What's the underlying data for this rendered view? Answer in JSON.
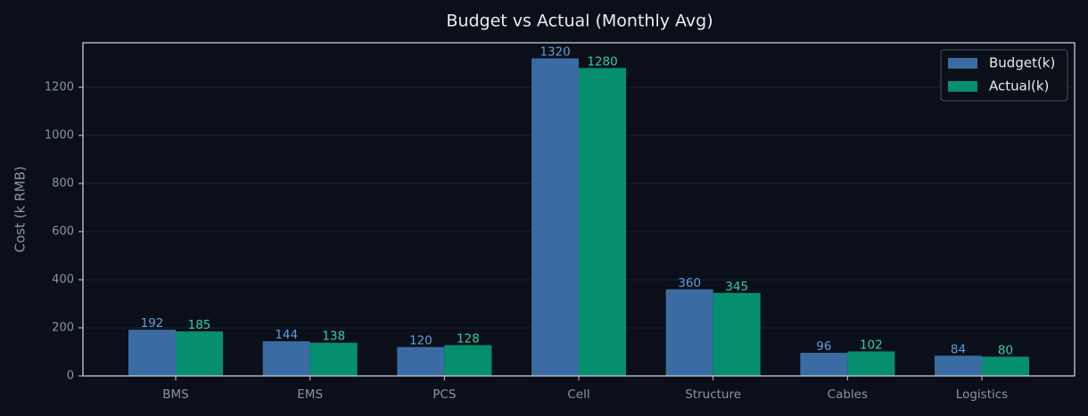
{
  "chart_data": {
    "type": "bar",
    "title": "Budget vs Actual (Monthly Avg)",
    "y_label": "Cost (k RMB)",
    "categories": [
      "BMS",
      "EMS",
      "PCS",
      "Cell",
      "Structure",
      "Cables",
      "Logistics"
    ],
    "series": [
      {
        "name": "Budget(k)",
        "color": "#3a6ca3",
        "label_color": "#5b9ee0",
        "values": [
          192,
          144,
          120,
          1320,
          360,
          96,
          84
        ]
      },
      {
        "name": "Actual(k)",
        "color": "#058f6e",
        "label_color": "#2ed39c",
        "values": [
          185,
          138,
          128,
          1280,
          345,
          102,
          80
        ]
      }
    ],
    "ylim": [
      0,
      1385
    ],
    "yticks": [
      0,
      200,
      400,
      600,
      800,
      1000,
      1200
    ],
    "grid": true,
    "legend": "upper right"
  }
}
